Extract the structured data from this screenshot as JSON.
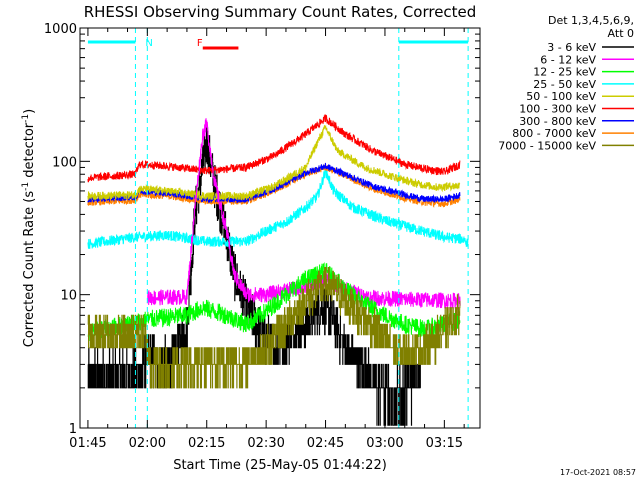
{
  "chart_data": {
    "type": "line",
    "title": "RHESSI Observing Summary Count Rates, Corrected",
    "xlabel": "Start Time (25-May-05 01:44:22)",
    "ylabel": "Corrected Count Rate (s",
    "ylabel_sup": "-1",
    "ylabel_tail": " detector",
    "ylabel_tail_sup": "-1",
    "ylabel_close": ")",
    "yscale": "log",
    "ylim": [
      1,
      1000
    ],
    "xlim_minutes": [
      103,
      204
    ],
    "x_ticks": [
      {
        "m": 105,
        "label": "01:45"
      },
      {
        "m": 120,
        "label": "02:00"
      },
      {
        "m": 135,
        "label": "02:15"
      },
      {
        "m": 150,
        "label": "02:30"
      },
      {
        "m": 165,
        "label": "02:45"
      },
      {
        "m": 180,
        "label": "03:00"
      },
      {
        "m": 195,
        "label": "03:15"
      }
    ],
    "y_ticks": [
      {
        "v": 1,
        "label": "1"
      },
      {
        "v": 10,
        "label": "10"
      },
      {
        "v": 100,
        "label": "100"
      },
      {
        "v": 1000,
        "label": "1000"
      }
    ],
    "legend_title_1": "Det 1,3,4,5,6,9,",
    "legend_title_2": "Att 0",
    "legend_position": "right",
    "annotations": [
      {
        "label": "N",
        "color": "#00ffff",
        "x_minutes": 119
      },
      {
        "label": "F",
        "color": "#ff0000",
        "x_minutes": 132
      }
    ],
    "night_bars": [
      [
        105,
        117
      ],
      [
        183.5,
        201
      ]
    ],
    "flare_bar": [
      134,
      143
    ],
    "dashed_vlines": [
      117,
      120,
      183.5,
      201
    ],
    "series": [
      {
        "name": "3 - 6 keV",
        "color": "#000000",
        "noise": 0.35,
        "points": [
          [
            105,
            2.5
          ],
          [
            118,
            2.5
          ],
          [
            120,
            3.5
          ],
          [
            126,
            3
          ],
          [
            130,
            6
          ],
          [
            132,
            40
          ],
          [
            135,
            140
          ],
          [
            137,
            65
          ],
          [
            140,
            28
          ],
          [
            142,
            14
          ],
          [
            146,
            7
          ],
          [
            152,
            4
          ],
          [
            156,
            5
          ],
          [
            160,
            6
          ],
          [
            163,
            8
          ],
          [
            166,
            7.5
          ],
          [
            170,
            4
          ],
          [
            174,
            3
          ],
          [
            178,
            2
          ],
          [
            182,
            1.7
          ],
          [
            186,
            2
          ],
          [
            189,
            2.4
          ]
        ]
      },
      {
        "name": "6 - 12 keV",
        "color": "#ff00ff",
        "noise": 0.06,
        "points": [
          [
            120,
            9.5
          ],
          [
            130,
            9.6
          ],
          [
            132,
            45
          ],
          [
            134,
            160
          ],
          [
            135,
            190
          ],
          [
            137,
            70
          ],
          [
            140,
            30
          ],
          [
            142,
            14
          ],
          [
            145,
            10
          ],
          [
            150,
            10
          ],
          [
            160,
            11.5
          ],
          [
            165,
            13
          ],
          [
            170,
            11
          ],
          [
            176,
            9.5
          ],
          [
            186,
            9.2
          ],
          [
            199,
            9
          ]
        ]
      },
      {
        "name": "12 - 25 keV",
        "color": "#00ff00",
        "noise": 0.07,
        "points": [
          [
            105,
            5.2
          ],
          [
            120,
            6.5
          ],
          [
            130,
            7
          ],
          [
            134,
            8
          ],
          [
            140,
            7
          ],
          [
            145,
            6
          ],
          [
            150,
            7.5
          ],
          [
            155,
            10
          ],
          [
            160,
            13
          ],
          [
            165,
            15
          ],
          [
            170,
            11
          ],
          [
            175,
            8.5
          ],
          [
            180,
            7
          ],
          [
            185,
            6
          ],
          [
            190,
            5.5
          ],
          [
            195,
            6
          ],
          [
            199,
            6.5
          ]
        ]
      },
      {
        "name": "25 - 50 keV",
        "color": "#00ffff",
        "noise": 0.04,
        "points": [
          [
            105,
            24
          ],
          [
            117,
            27
          ],
          [
            125,
            28
          ],
          [
            135,
            25
          ],
          [
            145,
            25
          ],
          [
            150,
            30
          ],
          [
            155,
            35
          ],
          [
            160,
            45
          ],
          [
            163,
            55
          ],
          [
            165,
            85
          ],
          [
            167,
            60
          ],
          [
            172,
            45
          ],
          [
            180,
            36
          ],
          [
            186,
            32
          ],
          [
            195,
            27
          ],
          [
            200,
            26
          ],
          [
            201,
            24
          ]
        ]
      },
      {
        "name": "50 - 100 keV",
        "color": "#cccc00",
        "noise": 0.03,
        "points": [
          [
            105,
            55
          ],
          [
            117,
            56
          ],
          [
            118,
            62
          ],
          [
            125,
            60
          ],
          [
            135,
            55
          ],
          [
            145,
            55
          ],
          [
            152,
            65
          ],
          [
            160,
            90
          ],
          [
            163,
            140
          ],
          [
            165,
            180
          ],
          [
            168,
            120
          ],
          [
            175,
            90
          ],
          [
            183,
            75
          ],
          [
            188,
            68
          ],
          [
            193,
            64
          ],
          [
            199,
            66
          ]
        ]
      },
      {
        "name": "100 - 300 keV",
        "color": "#ff0000",
        "noise": 0.03,
        "points": [
          [
            105,
            75
          ],
          [
            117,
            80
          ],
          [
            118,
            95
          ],
          [
            125,
            92
          ],
          [
            135,
            85
          ],
          [
            145,
            90
          ],
          [
            152,
            110
          ],
          [
            160,
            160
          ],
          [
            165,
            210
          ],
          [
            170,
            160
          ],
          [
            177,
            120
          ],
          [
            185,
            95
          ],
          [
            190,
            88
          ],
          [
            195,
            83
          ],
          [
            199,
            95
          ]
        ]
      },
      {
        "name": "300 - 800 keV",
        "color": "#0000ff",
        "noise": 0.025,
        "points": [
          [
            105,
            52
          ],
          [
            117,
            54
          ],
          [
            118,
            60
          ],
          [
            125,
            58
          ],
          [
            135,
            52
          ],
          [
            145,
            52
          ],
          [
            152,
            62
          ],
          [
            160,
            82
          ],
          [
            165,
            92
          ],
          [
            170,
            80
          ],
          [
            177,
            65
          ],
          [
            185,
            56
          ],
          [
            190,
            52
          ],
          [
            195,
            52
          ],
          [
            199,
            56
          ]
        ]
      },
      {
        "name": "800 - 7000 keV",
        "color": "#ff8000",
        "noise": 0.025,
        "points": [
          [
            105,
            49
          ],
          [
            117,
            51
          ],
          [
            118,
            56
          ],
          [
            125,
            55
          ],
          [
            135,
            50
          ],
          [
            145,
            50
          ],
          [
            152,
            60
          ],
          [
            160,
            80
          ],
          [
            165,
            90
          ],
          [
            170,
            78
          ],
          [
            177,
            62
          ],
          [
            185,
            53
          ],
          [
            190,
            49
          ],
          [
            195,
            48
          ],
          [
            199,
            52
          ]
        ]
      },
      {
        "name": "7000 - 15000 keV",
        "color": "#808000",
        "noise": 0.28,
        "points": [
          [
            105,
            5
          ],
          [
            119,
            5
          ],
          [
            121,
            3
          ],
          [
            126,
            3
          ],
          [
            132,
            3
          ],
          [
            137,
            3.2
          ],
          [
            142,
            3
          ],
          [
            148,
            3.5
          ],
          [
            153,
            5
          ],
          [
            158,
            8
          ],
          [
            163,
            11
          ],
          [
            166,
            12
          ],
          [
            170,
            9
          ],
          [
            176,
            6
          ],
          [
            182,
            4
          ],
          [
            188,
            3.6
          ],
          [
            194,
            5
          ],
          [
            199,
            7.5
          ]
        ]
      }
    ]
  },
  "timestamp": "17-Oct-2021 08:57"
}
